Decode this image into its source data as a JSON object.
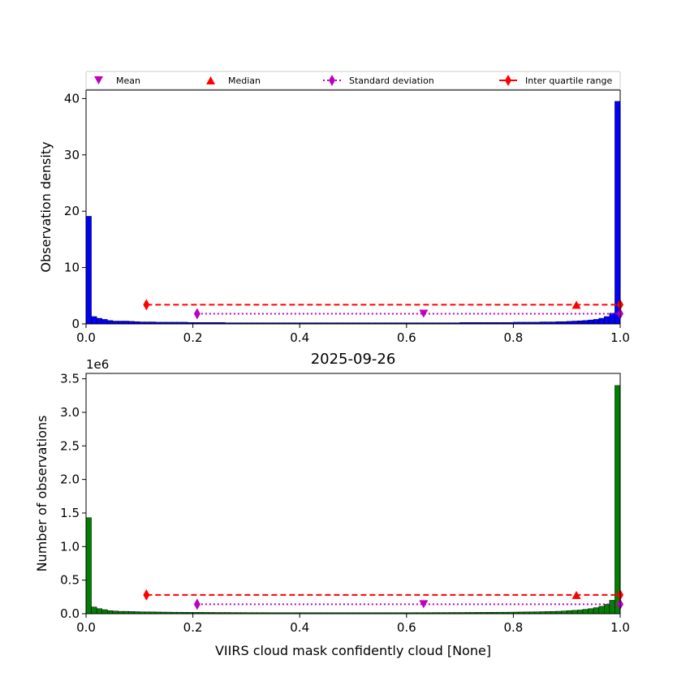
{
  "legend": {
    "items": [
      {
        "label": "Mean",
        "color": "#bf00bf",
        "marker": "triangle-down"
      },
      {
        "label": "Median",
        "color": "#ff0000",
        "marker": "triangle-up"
      },
      {
        "label": "Standard deviation",
        "color": "#bf00bf",
        "marker": "diamond",
        "line": "dotted"
      },
      {
        "label": "Inter quartile range",
        "color": "#ff0000",
        "marker": "diamond",
        "line": "dashed"
      }
    ]
  },
  "chart_data": [
    {
      "type": "bar",
      "title": "",
      "xlabel": "",
      "ylabel": "Observation density",
      "xlim": [
        0,
        1
      ],
      "ylim": [
        0,
        41.5
      ],
      "x_ticks": [
        "0.0",
        "0.2",
        "0.4",
        "0.6",
        "0.8",
        "1.0"
      ],
      "y_ticks": [
        "0",
        "10",
        "20",
        "30",
        "40"
      ],
      "bar_color": "#0000ff",
      "bin_width": 0.01,
      "values": [
        19.1,
        1.3,
        1.0,
        0.8,
        0.6,
        0.5,
        0.5,
        0.5,
        0.45,
        0.4,
        0.35,
        0.35,
        0.35,
        0.3,
        0.3,
        0.3,
        0.3,
        0.3,
        0.3,
        0.25,
        0.25,
        0.25,
        0.25,
        0.25,
        0.25,
        0.25,
        0.2,
        0.2,
        0.2,
        0.2,
        0.2,
        0.2,
        0.2,
        0.2,
        0.2,
        0.2,
        0.2,
        0.2,
        0.2,
        0.2,
        0.2,
        0.2,
        0.2,
        0.2,
        0.2,
        0.2,
        0.2,
        0.2,
        0.2,
        0.2,
        0.2,
        0.2,
        0.2,
        0.2,
        0.2,
        0.2,
        0.2,
        0.2,
        0.2,
        0.2,
        0.2,
        0.2,
        0.2,
        0.2,
        0.2,
        0.2,
        0.2,
        0.2,
        0.2,
        0.2,
        0.25,
        0.25,
        0.25,
        0.25,
        0.25,
        0.25,
        0.25,
        0.25,
        0.25,
        0.25,
        0.3,
        0.3,
        0.3,
        0.3,
        0.3,
        0.35,
        0.35,
        0.35,
        0.4,
        0.4,
        0.45,
        0.5,
        0.55,
        0.6,
        0.7,
        0.8,
        1.0,
        1.3,
        1.9,
        39.5
      ],
      "stats": {
        "mean": 0.632,
        "median": 0.918,
        "std_range": [
          0.208,
          1.0
        ],
        "iqr_range": [
          0.113,
          1.0
        ],
        "line_y_iqr": 3.4,
        "line_y_std": 1.8
      }
    },
    {
      "type": "bar",
      "title": "2025-09-26",
      "xlabel": "VIIRS cloud mask confidently cloud [None]",
      "ylabel": "Number of observations",
      "y_offset_label": "1e6",
      "xlim": [
        0,
        1
      ],
      "ylim": [
        0,
        3.58
      ],
      "x_ticks": [
        "0.0",
        "0.2",
        "0.4",
        "0.6",
        "0.8",
        "1.0"
      ],
      "y_ticks": [
        "0.0",
        "0.5",
        "1.0",
        "1.5",
        "2.0",
        "2.5",
        "3.0",
        "3.5"
      ],
      "bar_color": "#008000",
      "bin_width": 0.01,
      "values": [
        1.43,
        0.1,
        0.075,
        0.06,
        0.045,
        0.04,
        0.035,
        0.035,
        0.033,
        0.03,
        0.028,
        0.027,
        0.026,
        0.025,
        0.024,
        0.023,
        0.022,
        0.022,
        0.021,
        0.02,
        0.02,
        0.02,
        0.019,
        0.019,
        0.018,
        0.018,
        0.018,
        0.017,
        0.017,
        0.017,
        0.016,
        0.016,
        0.016,
        0.016,
        0.015,
        0.015,
        0.015,
        0.015,
        0.015,
        0.015,
        0.015,
        0.015,
        0.015,
        0.015,
        0.015,
        0.015,
        0.015,
        0.015,
        0.015,
        0.015,
        0.015,
        0.015,
        0.015,
        0.015,
        0.015,
        0.015,
        0.015,
        0.015,
        0.015,
        0.015,
        0.015,
        0.016,
        0.016,
        0.016,
        0.016,
        0.017,
        0.017,
        0.017,
        0.018,
        0.018,
        0.018,
        0.019,
        0.019,
        0.02,
        0.02,
        0.021,
        0.021,
        0.022,
        0.022,
        0.023,
        0.024,
        0.025,
        0.026,
        0.027,
        0.028,
        0.03,
        0.032,
        0.034,
        0.036,
        0.04,
        0.045,
        0.05,
        0.055,
        0.065,
        0.075,
        0.09,
        0.11,
        0.14,
        0.2,
        3.4
      ],
      "stats": {
        "mean": 0.632,
        "median": 0.918,
        "std_range": [
          0.208,
          1.0
        ],
        "iqr_range": [
          0.113,
          1.0
        ],
        "line_y_iqr": 0.28,
        "line_y_std": 0.14
      }
    }
  ]
}
